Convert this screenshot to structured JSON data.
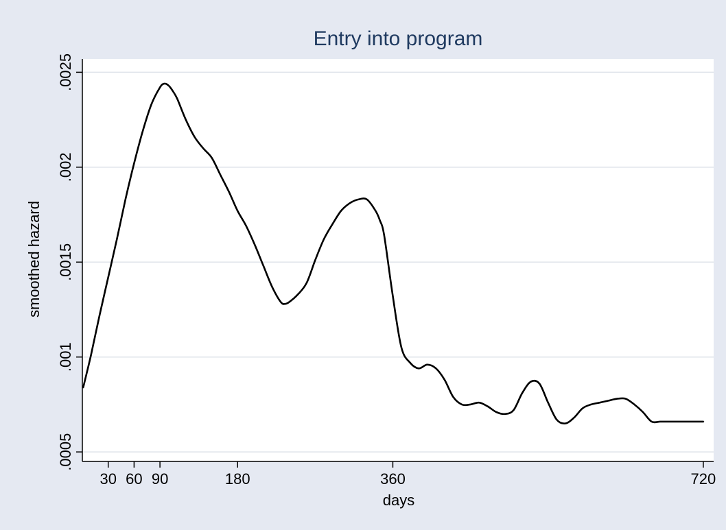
{
  "chart_data": {
    "type": "line",
    "title": "Entry into program",
    "xlabel": "days",
    "ylabel": "smoothed hazard",
    "xlim": [
      0,
      732
    ],
    "ylim": [
      0.00045,
      0.00257
    ],
    "xticks": [
      30,
      60,
      90,
      180,
      360,
      720
    ],
    "xtick_labels": [
      "30",
      "60",
      "90",
      "180",
      "360",
      "720"
    ],
    "yticks": [
      0.0005,
      0.001,
      0.0015,
      0.002,
      0.0025
    ],
    "ytick_labels": [
      ".0005",
      ".001",
      ".0015",
      ".002",
      ".0025"
    ],
    "grid": true,
    "colors": {
      "background": "#e5e9f2",
      "plot_background": "#ffffff",
      "line": "#000000",
      "grid": "#dfe3ea",
      "title": "#1f3a60"
    },
    "series": [
      {
        "x": [
          1,
          10,
          20,
          30,
          40,
          50,
          60,
          70,
          80,
          90,
          95,
          100,
          105,
          110,
          120,
          130,
          140,
          150,
          160,
          170,
          180,
          190,
          200,
          210,
          220,
          230,
          235,
          240,
          250,
          260,
          270,
          280,
          290,
          300,
          310,
          320,
          330,
          340,
          345,
          350,
          360,
          370,
          380,
          390,
          400,
          410,
          420,
          430,
          440,
          450,
          460,
          470,
          480,
          490,
          500,
          510,
          520,
          530,
          540,
          550,
          560,
          570,
          580,
          590,
          600,
          610,
          620,
          630,
          640,
          650,
          660,
          670,
          680,
          690,
          700,
          710,
          720
        ],
        "y": [
          0.00084,
          0.00101,
          0.00122,
          0.00142,
          0.00162,
          0.00183,
          0.00202,
          0.00219,
          0.00233,
          0.00242,
          0.00244,
          0.00243,
          0.0024,
          0.00236,
          0.00225,
          0.00216,
          0.0021,
          0.00205,
          0.00196,
          0.00187,
          0.00177,
          0.00169,
          0.00159,
          0.00148,
          0.00137,
          0.00129,
          0.00128,
          0.00129,
          0.00133,
          0.00139,
          0.00151,
          0.00162,
          0.0017,
          0.00177,
          0.00181,
          0.00183,
          0.00183,
          0.00177,
          0.00172,
          0.00164,
          0.00132,
          0.00105,
          0.00097,
          0.00094,
          0.00096,
          0.00094,
          0.00088,
          0.00079,
          0.00075,
          0.00075,
          0.00076,
          0.00074,
          0.00071,
          0.0007,
          0.00072,
          0.00081,
          0.00087,
          0.00086,
          0.00076,
          0.00067,
          0.00065,
          0.00068,
          0.00073,
          0.00075,
          0.00076,
          0.00077,
          0.00078,
          0.00078,
          0.00075,
          0.00071,
          0.00066,
          0.00066,
          0.00066,
          0.00066,
          0.00066,
          0.00066,
          0.00066
        ]
      }
    ]
  }
}
